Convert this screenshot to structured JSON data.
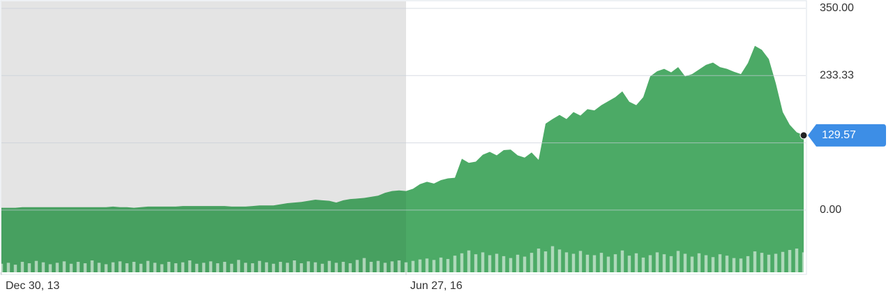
{
  "chart_data": {
    "type": "area",
    "color": "#4caa66",
    "values": [
      4,
      4,
      4,
      5,
      5,
      5,
      5,
      5,
      5,
      5,
      5,
      5,
      5,
      5,
      5,
      5,
      6,
      5,
      5,
      4,
      5,
      6,
      6,
      6,
      6,
      6,
      7,
      7,
      7,
      7,
      7,
      7,
      7,
      6,
      6,
      6,
      7,
      8,
      8,
      8,
      10,
      12,
      13,
      14,
      16,
      18,
      17,
      16,
      13,
      17,
      19,
      20,
      21,
      23,
      25,
      30,
      33,
      34,
      33,
      37,
      45,
      49,
      46,
      52,
      55,
      56,
      89,
      82,
      84,
      96,
      101,
      95,
      104,
      105,
      95,
      91,
      100,
      87,
      150,
      158,
      165,
      158,
      170,
      164,
      175,
      173,
      182,
      189,
      196,
      206,
      188,
      182,
      196,
      232,
      241,
      245,
      239,
      248,
      232,
      236,
      244,
      252,
      256,
      248,
      245,
      240,
      236,
      255,
      285,
      278,
      262,
      220,
      170,
      148,
      135,
      129.57
    ],
    "volume": [
      18,
      20,
      16,
      22,
      19,
      24,
      21,
      17,
      20,
      23,
      18,
      22,
      19,
      25,
      20,
      17,
      21,
      23,
      19,
      22,
      18,
      24,
      20,
      17,
      22,
      19,
      21,
      25,
      18,
      20,
      23,
      19,
      22,
      18,
      26,
      20,
      19,
      24,
      21,
      18,
      22,
      20,
      25,
      19,
      23,
      21,
      18,
      24,
      20,
      22,
      19,
      26,
      30,
      22,
      24,
      20,
      23,
      25,
      21,
      24,
      27,
      29,
      26,
      31,
      28,
      35,
      40,
      46,
      38,
      42,
      36,
      39,
      34,
      30,
      37,
      33,
      41,
      50,
      44,
      55,
      48,
      42,
      39,
      45,
      37,
      36,
      41,
      33,
      38,
      46,
      35,
      40,
      31,
      36,
      42,
      38,
      34,
      45,
      39,
      33,
      40,
      36,
      32,
      38,
      35,
      30,
      29,
      34,
      44,
      41,
      37,
      39,
      43,
      47,
      50,
      42
    ],
    "volume_lim": [
      0,
      100
    ],
    "xlim": [
      0,
      115
    ],
    "xticks": [
      {
        "value": 0,
        "label": "Dec 30, 13"
      },
      {
        "value": 58,
        "label": "Jun 27, 16"
      }
    ],
    "shade_xlim": [
      0,
      58
    ],
    "ylim": [
      -108,
      350
    ],
    "yticks": [
      {
        "value": 0,
        "label": "0.00"
      },
      {
        "value": 116.67,
        "label": null
      },
      {
        "value": 233.33,
        "label": "233.33"
      },
      {
        "value": 350,
        "label": "350.00"
      }
    ],
    "grid": true
  }
}
